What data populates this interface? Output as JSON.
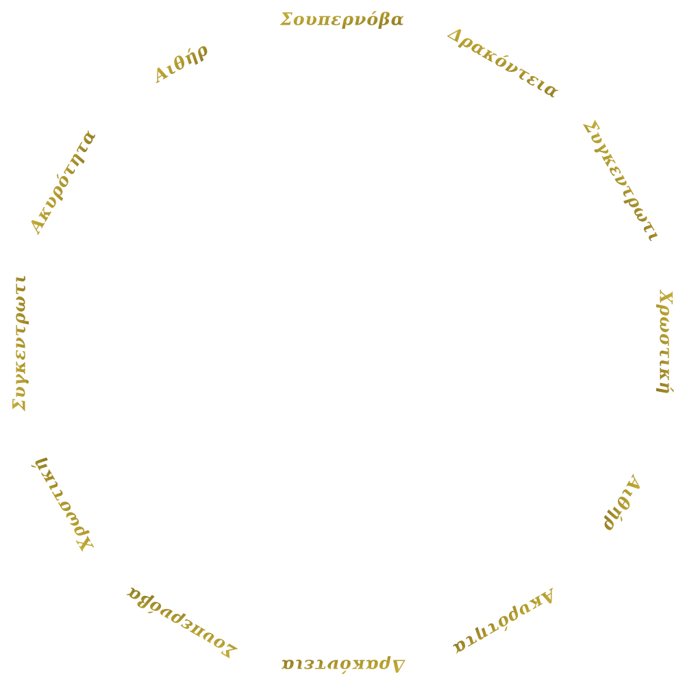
{
  "palette": {
    "gold_light": "#c9b23a",
    "gold_mid": "#b19a2e",
    "gold_dark": "#8a7420"
  },
  "ring": {
    "words": [
      "Σουπερνόβα",
      "Δρακόντεια",
      "Συγκεντρωτι",
      "Χρωστική",
      "Αιθήρ",
      "Ακυρότητα",
      "Δρακόντεια",
      "Σουπερνόβα",
      "Χρωστική",
      "Συγκεντρωτι",
      "Ακυρότητα",
      "Αιθήρ"
    ]
  }
}
